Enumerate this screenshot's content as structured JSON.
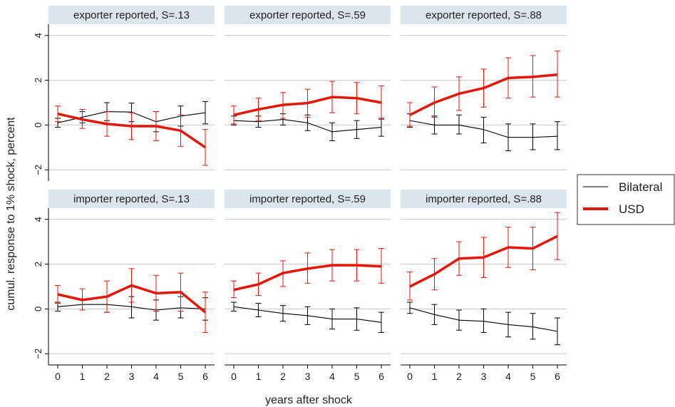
{
  "figure": {
    "ylabel": "cumul. response to 1% shock, percent",
    "xlabel": "years after shock",
    "legend": {
      "placement": "right",
      "entries": [
        {
          "label": "Bilateral",
          "color": "#000000"
        },
        {
          "label": "USD",
          "color": "#e3170a"
        }
      ]
    },
    "colors": {
      "panel_header": "#dbe5ec",
      "grid": "#c8c8c8",
      "usd": "#e3170a",
      "bilateral": "#000000"
    }
  },
  "chart_data": [
    {
      "type": "line",
      "title": "exporter reported, S=.13",
      "x": [
        0,
        1,
        2,
        3,
        4,
        5,
        6
      ],
      "ylim": [
        -2.5,
        4.5
      ],
      "yticks": [
        -2,
        0,
        2,
        4
      ],
      "series": [
        {
          "name": "Bilateral",
          "values": [
            0.1,
            0.35,
            0.6,
            0.58,
            0.15,
            0.4,
            0.55
          ],
          "lower": [
            -0.1,
            0.1,
            0.2,
            0.15,
            -0.3,
            -0.05,
            0.05
          ],
          "upper": [
            0.3,
            0.6,
            1.0,
            0.98,
            0.6,
            0.85,
            1.05
          ]
        },
        {
          "name": "USD",
          "values": [
            0.5,
            0.25,
            0.05,
            -0.05,
            -0.05,
            -0.25,
            -1.0
          ],
          "lower": [
            0.15,
            -0.15,
            -0.5,
            -0.65,
            -0.7,
            -0.95,
            -1.8
          ],
          "upper": [
            0.85,
            0.7,
            0.6,
            0.55,
            0.6,
            0.45,
            -0.2
          ]
        }
      ]
    },
    {
      "type": "line",
      "title": "exporter reported, S=.59",
      "x": [
        0,
        1,
        2,
        3,
        4,
        5,
        6
      ],
      "ylim": [
        -2.5,
        4.5
      ],
      "yticks": [
        -2,
        0,
        2,
        4
      ],
      "series": [
        {
          "name": "Bilateral",
          "values": [
            0.2,
            0.15,
            0.25,
            0.1,
            -0.3,
            -0.2,
            -0.1
          ],
          "lower": [
            0.0,
            -0.1,
            0.0,
            -0.25,
            -0.7,
            -0.6,
            -0.5
          ],
          "upper": [
            0.4,
            0.4,
            0.5,
            0.45,
            0.1,
            0.2,
            0.3
          ]
        },
        {
          "name": "USD",
          "values": [
            0.45,
            0.7,
            0.9,
            0.98,
            1.25,
            1.2,
            1.0
          ],
          "lower": [
            0.05,
            0.2,
            0.3,
            0.35,
            0.55,
            0.5,
            0.25
          ],
          "upper": [
            0.85,
            1.2,
            1.45,
            1.6,
            1.95,
            1.9,
            1.75
          ]
        }
      ]
    },
    {
      "type": "line",
      "title": "exporter reported, S=.88",
      "x": [
        0,
        1,
        2,
        3,
        4,
        5,
        6
      ],
      "ylim": [
        -2.5,
        4.5
      ],
      "yticks": [
        -2,
        0,
        2,
        4
      ],
      "series": [
        {
          "name": "Bilateral",
          "values": [
            0.2,
            0.0,
            0.0,
            -0.2,
            -0.55,
            -0.55,
            -0.5
          ],
          "lower": [
            -0.1,
            -0.4,
            -0.4,
            -0.8,
            -1.15,
            -1.1,
            -1.1
          ],
          "upper": [
            0.5,
            0.4,
            0.45,
            0.35,
            0.05,
            0.05,
            0.15
          ]
        },
        {
          "name": "USD",
          "values": [
            0.45,
            1.0,
            1.4,
            1.65,
            2.1,
            2.15,
            2.25
          ],
          "lower": [
            -0.05,
            0.35,
            0.65,
            0.8,
            1.2,
            1.25,
            1.25
          ],
          "upper": [
            1.0,
            1.7,
            2.15,
            2.5,
            3.0,
            3.1,
            3.3
          ]
        }
      ]
    },
    {
      "type": "line",
      "title": "importer reported, S=.13",
      "x": [
        0,
        1,
        2,
        3,
        4,
        5,
        6
      ],
      "ylim": [
        -2.5,
        4.5
      ],
      "yticks": [
        -2,
        0,
        2,
        4
      ],
      "series": [
        {
          "name": "Bilateral",
          "values": [
            0.1,
            0.2,
            0.2,
            0.1,
            -0.05,
            0.05,
            0.0
          ],
          "lower": [
            -0.1,
            -0.05,
            -0.15,
            -0.4,
            -0.5,
            -0.4,
            -0.5
          ],
          "upper": [
            0.3,
            0.45,
            0.55,
            0.55,
            0.4,
            0.55,
            0.5
          ]
        },
        {
          "name": "USD",
          "values": [
            0.65,
            0.4,
            0.55,
            1.05,
            0.7,
            0.75,
            -0.15
          ],
          "lower": [
            0.25,
            -0.05,
            -0.15,
            0.3,
            -0.1,
            -0.1,
            -1.05
          ],
          "upper": [
            1.05,
            0.9,
            1.25,
            1.8,
            1.5,
            1.6,
            0.75
          ]
        }
      ]
    },
    {
      "type": "line",
      "title": "importer reported, S=.59",
      "x": [
        0,
        1,
        2,
        3,
        4,
        5,
        6
      ],
      "ylim": [
        -2.5,
        4.5
      ],
      "yticks": [
        -2,
        0,
        2,
        4
      ],
      "series": [
        {
          "name": "Bilateral",
          "values": [
            0.1,
            -0.05,
            -0.2,
            -0.3,
            -0.45,
            -0.45,
            -0.6
          ],
          "lower": [
            -0.1,
            -0.35,
            -0.55,
            -0.7,
            -0.9,
            -0.95,
            -1.05
          ],
          "upper": [
            0.3,
            0.25,
            0.15,
            0.1,
            0.0,
            0.05,
            -0.15
          ]
        },
        {
          "name": "USD",
          "values": [
            0.85,
            1.1,
            1.6,
            1.8,
            1.95,
            1.95,
            1.9
          ],
          "lower": [
            0.5,
            0.6,
            1.0,
            1.15,
            1.25,
            1.25,
            1.15
          ],
          "upper": [
            1.25,
            1.6,
            2.15,
            2.5,
            2.65,
            2.65,
            2.7
          ]
        }
      ]
    },
    {
      "type": "line",
      "title": "importer reported, S=.88",
      "x": [
        0,
        1,
        2,
        3,
        4,
        5,
        6
      ],
      "ylim": [
        -2.5,
        4.5
      ],
      "yticks": [
        -2,
        0,
        2,
        4
      ],
      "series": [
        {
          "name": "Bilateral",
          "values": [
            0.05,
            -0.25,
            -0.5,
            -0.55,
            -0.7,
            -0.8,
            -1.0
          ],
          "lower": [
            -0.2,
            -0.7,
            -0.95,
            -1.05,
            -1.25,
            -1.35,
            -1.6
          ],
          "upper": [
            0.3,
            0.2,
            -0.05,
            0.0,
            -0.15,
            -0.2,
            -0.4
          ]
        },
        {
          "name": "USD",
          "values": [
            1.0,
            1.55,
            2.25,
            2.3,
            2.75,
            2.7,
            3.25
          ],
          "lower": [
            0.4,
            0.85,
            1.5,
            1.4,
            1.85,
            1.75,
            2.2
          ],
          "upper": [
            1.65,
            2.25,
            3.0,
            3.2,
            3.65,
            3.65,
            4.3
          ]
        }
      ]
    }
  ]
}
